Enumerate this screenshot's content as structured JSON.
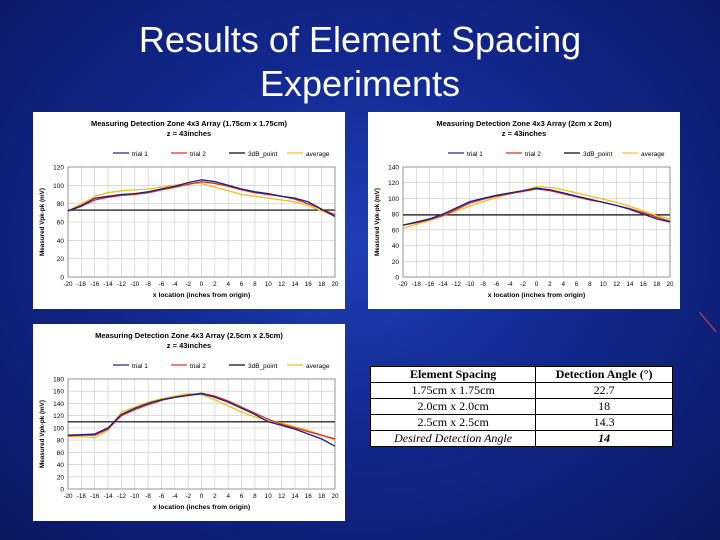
{
  "slide": {
    "title_line1": "Results of Element Spacing",
    "title_line2": "Experiments"
  },
  "colors": {
    "trial1": "#1f1f7a",
    "trial2": "#d62b2b",
    "threshold": "#000000",
    "average": "#f0c020"
  },
  "table": {
    "headers": [
      "Element Spacing",
      "Detection Angle (°)"
    ],
    "rows": [
      [
        "1.75cm x 1.75cm",
        "22.7"
      ],
      [
        "2.0cm x 2.0cm",
        "18"
      ],
      [
        "2.5cm x 2.5cm",
        "14.3"
      ],
      [
        "Desired Detection Angle",
        "14"
      ]
    ]
  },
  "chart_data": [
    {
      "type": "line",
      "title": "Measuring Detection Zone 4x3 Array (1.75cm x 1.75cm)",
      "subtitle": "z = 43inches",
      "xlabel": "x location (inches from origin)",
      "ylabel": "Measured Vpk-pk (mV)",
      "xlim": [
        -20,
        20
      ],
      "ylim": [
        0,
        120
      ],
      "yticks": [
        0,
        20,
        40,
        60,
        80,
        100,
        120
      ],
      "legend": [
        "trial 1",
        "trial 2",
        "3dB_point",
        "average"
      ],
      "x": [
        -20,
        -18,
        -16,
        -14,
        -12,
        -10,
        -8,
        -6,
        -4,
        -2,
        0,
        2,
        4,
        6,
        8,
        10,
        12,
        14,
        16,
        18,
        20
      ],
      "series": [
        {
          "name": "trial 1",
          "values": [
            72,
            78,
            86,
            88,
            90,
            91,
            93,
            96,
            99,
            103,
            106,
            104,
            100,
            96,
            93,
            91,
            88,
            86,
            82,
            74,
            66
          ]
        },
        {
          "name": "trial 2",
          "values": [
            72,
            77,
            84,
            87,
            89,
            90,
            92,
            95,
            98,
            101,
            104,
            102,
            99,
            95,
            92,
            90,
            88,
            85,
            80,
            74,
            68
          ]
        },
        {
          "name": "3dB_point",
          "values": [
            73,
            73,
            73,
            73,
            73,
            73,
            73,
            73,
            73,
            73,
            73,
            73,
            73,
            73,
            73,
            73,
            73,
            73,
            73,
            73,
            73
          ]
        },
        {
          "name": "average",
          "values": [
            72,
            80,
            88,
            92,
            94,
            95,
            96,
            98,
            100,
            102,
            102,
            98,
            94,
            90,
            88,
            86,
            84,
            82,
            78,
            72,
            67
          ]
        }
      ]
    },
    {
      "type": "line",
      "title": "Measuring Detection Zone 4x3 Array (2cm x 2cm)",
      "subtitle": "z = 43inches",
      "xlabel": "x location (inches from origin)",
      "ylabel": "Measured Vpk-pk (mV)",
      "xlim": [
        -20,
        20
      ],
      "ylim": [
        0,
        140
      ],
      "yticks": [
        0,
        20,
        40,
        60,
        80,
        100,
        120,
        140
      ],
      "legend": [
        "trial 1",
        "trial 2",
        "3dB_point",
        "average"
      ],
      "x": [
        -20,
        -18,
        -16,
        -14,
        -12,
        -10,
        -8,
        -6,
        -4,
        -2,
        0,
        2,
        4,
        6,
        8,
        10,
        12,
        14,
        16,
        18,
        20
      ],
      "series": [
        {
          "name": "trial 1",
          "values": [
            66,
            70,
            74,
            80,
            88,
            96,
            100,
            104,
            107,
            110,
            113,
            111,
            107,
            103,
            99,
            95,
            91,
            86,
            80,
            74,
            70
          ]
        },
        {
          "name": "trial 2",
          "values": [
            66,
            69,
            73,
            78,
            86,
            94,
            99,
            103,
            106,
            109,
            112,
            110,
            106,
            102,
            98,
            95,
            91,
            87,
            82,
            76,
            71
          ]
        },
        {
          "name": "3dB_point",
          "values": [
            79,
            79,
            79,
            79,
            79,
            79,
            79,
            79,
            79,
            79,
            79,
            79,
            79,
            79,
            79,
            79,
            79,
            79,
            79,
            79,
            79
          ]
        },
        {
          "name": "average",
          "values": [
            62,
            67,
            72,
            78,
            84,
            90,
            96,
            101,
            106,
            110,
            115,
            114,
            111,
            107,
            103,
            99,
            95,
            90,
            84,
            78,
            74
          ]
        }
      ]
    },
    {
      "type": "line",
      "title": "Measuring Detection Zone 4x3 Array (2.5cm x 2.5cm)",
      "subtitle": "z = 43inches",
      "xlabel": "x location (inches from origin)",
      "ylabel": "Measured Vpk-pk (mV)",
      "xlim": [
        -20,
        20
      ],
      "ylim": [
        0,
        180
      ],
      "yticks": [
        0,
        20,
        40,
        60,
        80,
        100,
        120,
        140,
        160,
        180
      ],
      "xticks": [
        -20,
        -18,
        -16,
        -14,
        -12,
        -10,
        -8,
        -6,
        -4,
        -2,
        0,
        2,
        4,
        6,
        8,
        10,
        12,
        14,
        16,
        18,
        20
      ],
      "xtick_labels": [
        "-20",
        "-18",
        "-16",
        "-14",
        "-12",
        "-10",
        "-8",
        "-6",
        "-4",
        "-2",
        "0",
        "2",
        "4",
        "6",
        "8",
        "10",
        "12",
        "14",
        "16",
        "18",
        "20"
      ],
      "legend": [
        "trial 1",
        "trial 2",
        "3dB_point",
        "average"
      ],
      "x": [
        -20,
        -18,
        -16,
        -14,
        -12,
        -10,
        -8,
        -6,
        -4,
        -2,
        0,
        2,
        4,
        6,
        8,
        10,
        12,
        14,
        16,
        18,
        20
      ],
      "series": [
        {
          "name": "trial 1",
          "values": [
            88,
            89,
            90,
            100,
            122,
            132,
            140,
            146,
            150,
            153,
            156,
            150,
            142,
            132,
            122,
            110,
            104,
            98,
            90,
            82,
            70
          ]
        },
        {
          "name": "trial 2",
          "values": [
            87,
            88,
            88,
            98,
            120,
            130,
            138,
            145,
            150,
            154,
            157,
            152,
            144,
            134,
            124,
            114,
            106,
            100,
            94,
            88,
            82
          ]
        },
        {
          "name": "3dB_point",
          "values": [
            110,
            110,
            110,
            110,
            110,
            110,
            110,
            110,
            110,
            110,
            110,
            110,
            110,
            110,
            110,
            110,
            110,
            110,
            110,
            110,
            110
          ]
        },
        {
          "name": "average",
          "values": [
            86,
            86,
            84,
            96,
            126,
            134,
            142,
            148,
            152,
            156,
            154,
            146,
            136,
            126,
            118,
            112,
            108,
            102,
            96,
            88,
            80
          ]
        }
      ]
    }
  ]
}
